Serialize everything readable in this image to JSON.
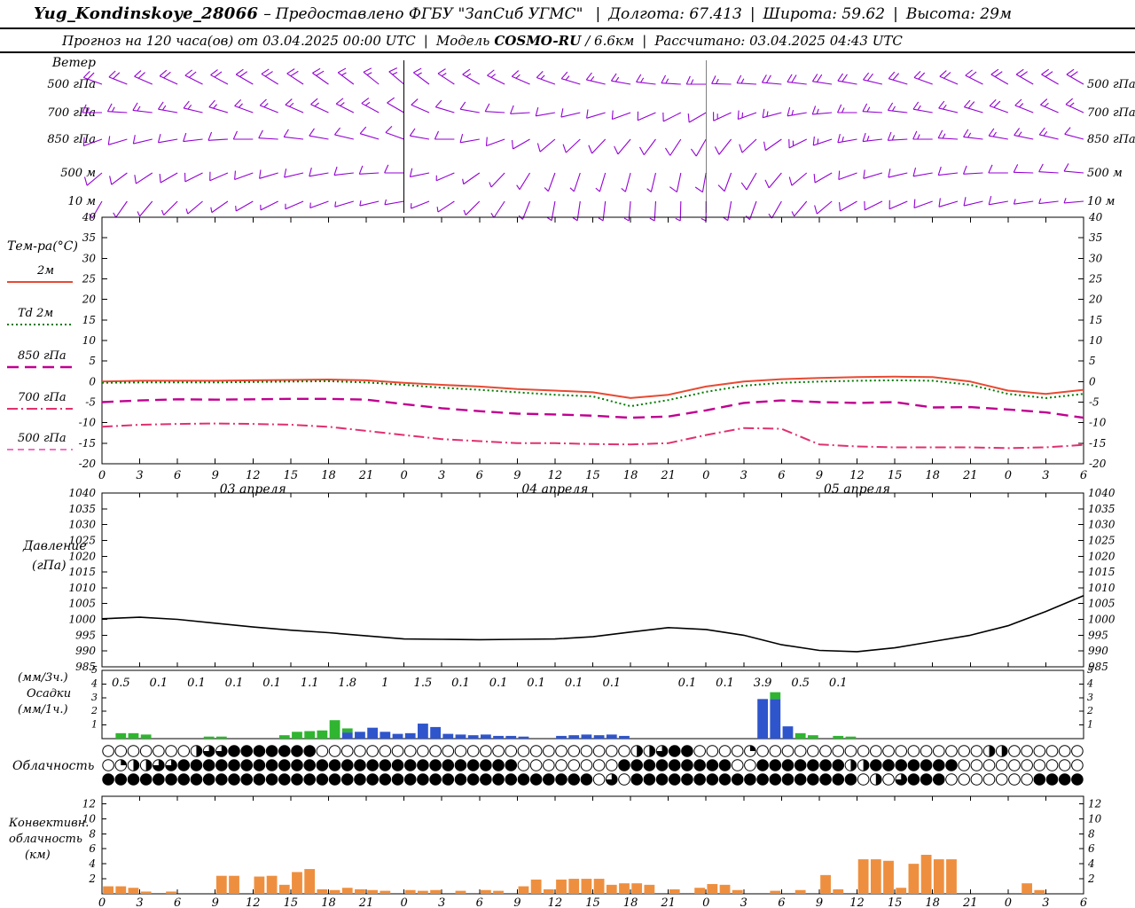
{
  "header": {
    "sep": "|",
    "line1": {
      "station": "Yug_Kondinskoye_28066",
      "dash": "–",
      "provider": "Предоставлено ФГБУ \"ЗапСиб УГМС\"",
      "lon": "Долгота: 67.413",
      "lat": "Широта: 59.62",
      "alt": "Высота: 29м"
    },
    "line2": {
      "forecast": "Прогноз на 120 часа(ов) от 03.04.2025 00:00 UTC",
      "model_label": "Модель",
      "model_name": "COSMO-RU",
      "model_res": "/ 6.6км",
      "computed": "Рассчитано: 03.04.2025 04:43 UTC"
    }
  },
  "chart_data": {
    "type": "meteogram",
    "time": {
      "hours_shown": 78,
      "hour_labels": [
        "0",
        "3",
        "6",
        "9",
        "12",
        "15",
        "18",
        "21",
        "0",
        "3",
        "6",
        "9",
        "12",
        "15",
        "18",
        "21",
        "0",
        "3",
        "6",
        "9",
        "12",
        "15",
        "18",
        "21",
        "0",
        "3",
        "6"
      ],
      "date_labels": [
        {
          "label": "03 апреля",
          "hour": 12
        },
        {
          "label": "04 апреля",
          "hour": 36
        },
        {
          "label": "05 апреля",
          "hour": 60
        }
      ],
      "day_separators_hours": [
        24,
        48
      ]
    },
    "wind": {
      "label": "Ветер",
      "color": "#9400d3",
      "barb_interval_hours": 2,
      "levels": [
        {
          "label": "500 гПа",
          "keyframes": [
            [
              0,
              290,
              18
            ],
            [
              12,
              300,
              20
            ],
            [
              24,
              310,
              16
            ],
            [
              36,
              290,
              14
            ],
            [
              48,
              270,
              16
            ],
            [
              60,
              280,
              20
            ],
            [
              72,
              300,
              22
            ],
            [
              78,
              300,
              20
            ]
          ]
        },
        {
          "label": "700 гПа",
          "keyframes": [
            [
              0,
              270,
              14
            ],
            [
              12,
              290,
              16
            ],
            [
              24,
              300,
              12
            ],
            [
              36,
              260,
              10
            ],
            [
              48,
              240,
              12
            ],
            [
              60,
              270,
              16
            ],
            [
              72,
              290,
              18
            ],
            [
              78,
              295,
              16
            ]
          ]
        },
        {
          "label": "850 гПа",
          "keyframes": [
            [
              0,
              250,
              10
            ],
            [
              12,
              270,
              12
            ],
            [
              24,
              290,
              10
            ],
            [
              36,
              230,
              8
            ],
            [
              48,
              210,
              10
            ],
            [
              60,
              260,
              14
            ],
            [
              72,
              280,
              14
            ],
            [
              78,
              285,
              12
            ]
          ]
        },
        {
          "label": "500 м",
          "keyframes": [
            [
              0,
              230,
              8
            ],
            [
              12,
              250,
              10
            ],
            [
              24,
              270,
              8
            ],
            [
              36,
              200,
              6
            ],
            [
              48,
              190,
              8
            ],
            [
              60,
              250,
              12
            ],
            [
              72,
              270,
              12
            ],
            [
              78,
              275,
              10
            ]
          ]
        },
        {
          "label": "10 м",
          "keyframes": [
            [
              0,
              210,
              5
            ],
            [
              12,
              240,
              6
            ],
            [
              24,
              260,
              5
            ],
            [
              36,
              190,
              4
            ],
            [
              48,
              180,
              6
            ],
            [
              60,
              240,
              8
            ],
            [
              72,
              260,
              8
            ],
            [
              78,
              265,
              6
            ]
          ]
        }
      ]
    },
    "temperature": {
      "label": "Тем-ра(°C)",
      "ylim": [
        -20,
        40
      ],
      "tick_step": 5,
      "sample_step_hours": 3,
      "series": [
        {
          "name": "2м",
          "color": "#e84a33",
          "width": 2,
          "dash": "none",
          "values": [
            0,
            0.2,
            0.2,
            0.2,
            0.3,
            0.4,
            0.5,
            0.3,
            -0.3,
            -0.8,
            -1.2,
            -1.8,
            -2.2,
            -2.6,
            -4.0,
            -3.2,
            -1.2,
            0.0,
            0.6,
            0.9,
            1.1,
            1.2,
            1.1,
            0.0,
            -2.2,
            -3.0,
            -2.0
          ]
        },
        {
          "name": "Td 2м",
          "color": "#007a00",
          "width": 2,
          "dash": "2 3",
          "values": [
            -0.3,
            -0.2,
            -0.2,
            -0.2,
            -0.1,
            0.0,
            0.1,
            -0.2,
            -0.8,
            -1.5,
            -2.0,
            -2.6,
            -3.2,
            -3.6,
            -6.0,
            -4.5,
            -2.5,
            -1.0,
            -0.3,
            0.0,
            0.2,
            0.3,
            0.2,
            -0.8,
            -3.0,
            -4.0,
            -3.0
          ]
        },
        {
          "name": "850 гПа",
          "color": "#c00090",
          "width": 2.4,
          "dash": "13 7",
          "values": [
            -5.0,
            -4.6,
            -4.3,
            -4.4,
            -4.3,
            -4.2,
            -4.2,
            -4.4,
            -5.5,
            -6.5,
            -7.2,
            -7.8,
            -8.0,
            -8.3,
            -8.8,
            -8.5,
            -7.0,
            -5.2,
            -4.6,
            -5.0,
            -5.2,
            -5.0,
            -6.3,
            -6.2,
            -6.8,
            -7.5,
            -8.8
          ]
        },
        {
          "name": "700 гПа",
          "color": "#e03070",
          "width": 2,
          "dash": "12 4 2 4",
          "values": [
            -11.0,
            -10.5,
            -10.3,
            -10.2,
            -10.3,
            -10.5,
            -11.0,
            -12.0,
            -13.0,
            -14.0,
            -14.5,
            -15.0,
            -15.0,
            -15.2,
            -15.3,
            -15.0,
            -13.0,
            -11.3,
            -11.5,
            -15.3,
            -15.8,
            -16.0,
            -16.0,
            -16.0,
            -16.2,
            -16.0,
            -15.4
          ]
        },
        {
          "name": "500 гПа",
          "color": "#f040b0",
          "width": 1.6,
          "dash": "7 5",
          "values": []
        }
      ]
    },
    "pressure": {
      "label": "Давление",
      "unit_label": "(гПа)",
      "ylim": [
        985,
        1040
      ],
      "tick_step": 5,
      "color": "#000000",
      "sample_step_hours": 3,
      "values": [
        1000.2,
        1000.7,
        1000.0,
        998.8,
        997.6,
        996.6,
        995.8,
        994.8,
        993.8,
        993.7,
        993.6,
        993.7,
        993.8,
        994.5,
        996.0,
        997.4,
        996.8,
        995.0,
        992.0,
        990.2,
        989.8,
        991.0,
        993.0,
        995.0,
        998.0,
        1002.5,
        1007.5
      ]
    },
    "precip": {
      "label_3h": "(мм/3ч.)",
      "label_main": "Осадки",
      "label_1h": "(мм/1ч.)",
      "ylim": [
        0,
        5
      ],
      "scale_ticks": [
        1,
        2,
        3,
        4,
        5
      ],
      "colors": {
        "blue": "#2f55cc",
        "green": "#2fb52f"
      },
      "amounts_3h": [
        "0.5",
        "0.1",
        "0.1",
        "0.1",
        "0.1",
        "1.1",
        "1.8",
        "1",
        "1.5",
        "0.1",
        "0.1",
        "0.1",
        "0.1",
        "0.1",
        null,
        "0.1",
        "0.1",
        "3.9",
        "0.5",
        "0.1",
        null,
        null,
        null,
        null,
        null,
        null
      ],
      "hourly": [
        {
          "h": 1,
          "g": 0.4
        },
        {
          "h": 2,
          "g": 0.4
        },
        {
          "h": 3,
          "g": 0.3
        },
        {
          "h": 8,
          "g": 0.15
        },
        {
          "h": 9,
          "g": 0.15
        },
        {
          "h": 14,
          "g": 0.25
        },
        {
          "h": 15,
          "g": 0.5
        },
        {
          "h": 16,
          "g": 0.55
        },
        {
          "h": 17,
          "g": 0.6
        },
        {
          "h": 18,
          "g": 1.35
        },
        {
          "h": 19,
          "b": 0.45,
          "g": 0.3
        },
        {
          "h": 20,
          "b": 0.5
        },
        {
          "h": 21,
          "b": 0.8
        },
        {
          "h": 22,
          "b": 0.5
        },
        {
          "h": 23,
          "b": 0.35
        },
        {
          "h": 24,
          "b": 0.4
        },
        {
          "h": 25,
          "b": 1.1
        },
        {
          "h": 26,
          "b": 0.85
        },
        {
          "h": 27,
          "b": 0.35
        },
        {
          "h": 28,
          "b": 0.3
        },
        {
          "h": 29,
          "b": 0.25
        },
        {
          "h": 30,
          "b": 0.3
        },
        {
          "h": 31,
          "b": 0.2
        },
        {
          "h": 32,
          "b": 0.2
        },
        {
          "h": 33,
          "b": 0.15
        },
        {
          "h": 36,
          "b": 0.2
        },
        {
          "h": 37,
          "b": 0.25
        },
        {
          "h": 38,
          "b": 0.3
        },
        {
          "h": 39,
          "b": 0.25
        },
        {
          "h": 40,
          "b": 0.3
        },
        {
          "h": 41,
          "b": 0.2
        },
        {
          "h": 52,
          "b": 2.9
        },
        {
          "h": 53,
          "b": 2.9,
          "g": 0.5
        },
        {
          "h": 54,
          "b": 0.9
        },
        {
          "h": 55,
          "g": 0.4
        },
        {
          "h": 56,
          "g": 0.25
        },
        {
          "h": 58,
          "g": 0.2
        },
        {
          "h": 59,
          "g": 0.15
        }
      ]
    },
    "cloud": {
      "label": "Облачность",
      "rows": [
        "000000023344444440000000000000000000000000223440000100000000000000000022000000",
        "012233444444444444444444444444444000000004444444440044444442244444440000000000",
        "444444444444444444444444444444444444444030444444444444444444020344400000004444"
      ]
    },
    "convective": {
      "label1": "Конвективн.",
      "label2": "облачность",
      "label3": "(км)",
      "ylim": [
        0,
        13
      ],
      "ticks": [
        2,
        4,
        6,
        8,
        10,
        12
      ],
      "color": "#ee8f3f",
      "hourly": [
        {
          "h": 0,
          "v": 1.0
        },
        {
          "h": 1,
          "v": 1.0
        },
        {
          "h": 2,
          "v": 0.8
        },
        {
          "h": 3,
          "v": 0.3
        },
        {
          "h": 5,
          "v": 0.3
        },
        {
          "h": 9,
          "v": 2.4
        },
        {
          "h": 10,
          "v": 2.4
        },
        {
          "h": 12,
          "v": 2.3
        },
        {
          "h": 13,
          "v": 2.4
        },
        {
          "h": 14,
          "v": 1.2
        },
        {
          "h": 15,
          "v": 2.9
        },
        {
          "h": 16,
          "v": 3.3
        },
        {
          "h": 17,
          "v": 0.6
        },
        {
          "h": 18,
          "v": 0.5
        },
        {
          "h": 19,
          "v": 0.8
        },
        {
          "h": 20,
          "v": 0.6
        },
        {
          "h": 21,
          "v": 0.5
        },
        {
          "h": 22,
          "v": 0.4
        },
        {
          "h": 24,
          "v": 0.5
        },
        {
          "h": 25,
          "v": 0.4
        },
        {
          "h": 26,
          "v": 0.5
        },
        {
          "h": 28,
          "v": 0.4
        },
        {
          "h": 30,
          "v": 0.5
        },
        {
          "h": 31,
          "v": 0.4
        },
        {
          "h": 33,
          "v": 1.0
        },
        {
          "h": 34,
          "v": 1.9
        },
        {
          "h": 35,
          "v": 0.6
        },
        {
          "h": 36,
          "v": 1.9
        },
        {
          "h": 37,
          "v": 2.0
        },
        {
          "h": 38,
          "v": 2.0
        },
        {
          "h": 39,
          "v": 2.0
        },
        {
          "h": 40,
          "v": 1.2
        },
        {
          "h": 41,
          "v": 1.4
        },
        {
          "h": 42,
          "v": 1.4
        },
        {
          "h": 43,
          "v": 1.2
        },
        {
          "h": 45,
          "v": 0.6
        },
        {
          "h": 47,
          "v": 0.8
        },
        {
          "h": 48,
          "v": 1.3
        },
        {
          "h": 49,
          "v": 1.2
        },
        {
          "h": 50,
          "v": 0.5
        },
        {
          "h": 53,
          "v": 0.4
        },
        {
          "h": 55,
          "v": 0.5
        },
        {
          "h": 57,
          "v": 2.5
        },
        {
          "h": 58,
          "v": 0.6
        },
        {
          "h": 60,
          "v": 4.6
        },
        {
          "h": 61,
          "v": 4.6
        },
        {
          "h": 62,
          "v": 4.4
        },
        {
          "h": 63,
          "v": 0.8
        },
        {
          "h": 64,
          "v": 4.0
        },
        {
          "h": 65,
          "v": 5.2
        },
        {
          "h": 66,
          "v": 4.6
        },
        {
          "h": 67,
          "v": 4.6
        },
        {
          "h": 73,
          "v": 1.4
        },
        {
          "h": 74,
          "v": 0.5
        }
      ]
    }
  }
}
